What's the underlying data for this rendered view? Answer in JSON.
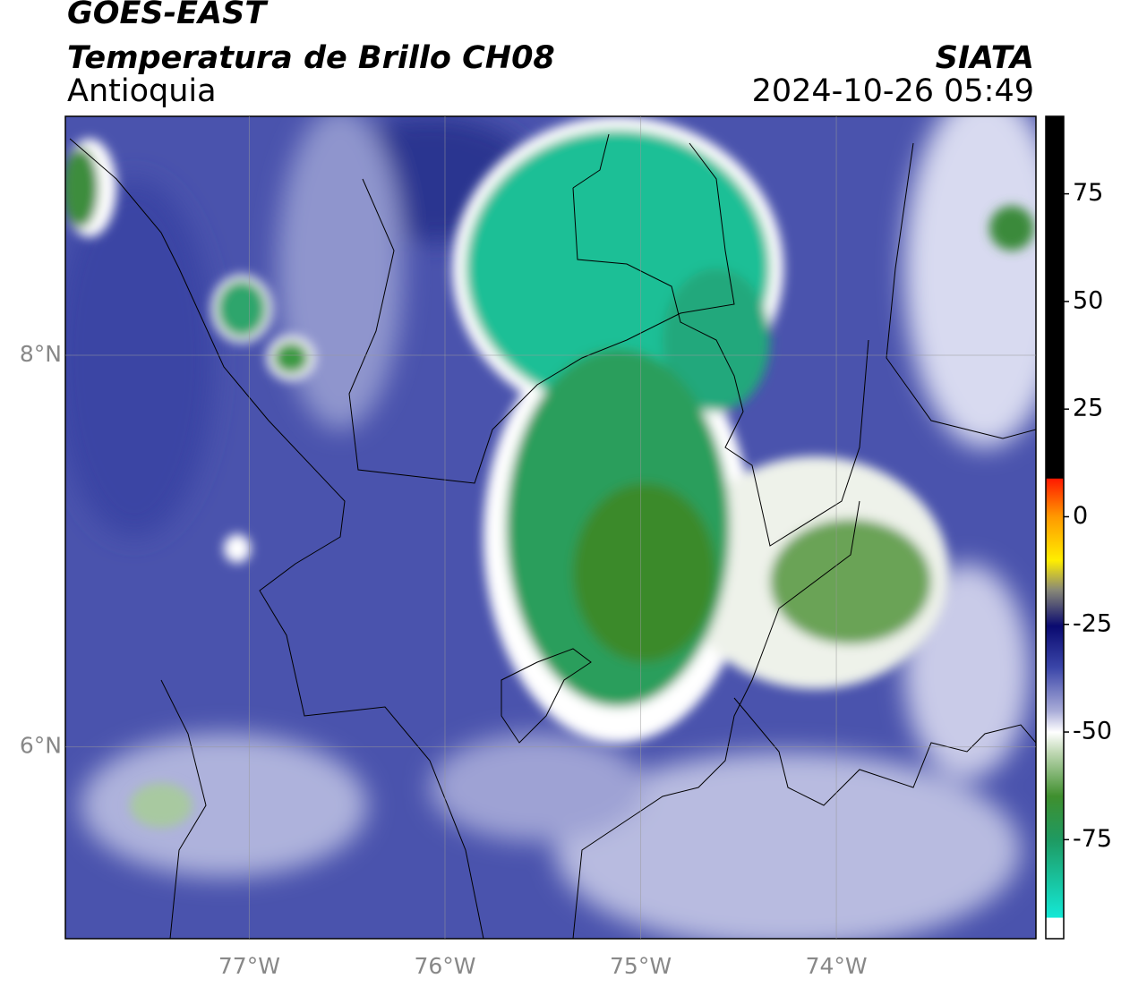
{
  "header": {
    "title": "GOES-EAST",
    "subtitle": "Temperatura de Brillo CH08",
    "region": "Antioquia",
    "source": "SIATA",
    "timestamp": "2024-10-26 05:49"
  },
  "map": {
    "xlim": [
      -77.94,
      -72.98
    ],
    "ylim": [
      5.02,
      9.22
    ],
    "xticks": [
      {
        "value": -77,
        "label": "77°W"
      },
      {
        "value": -76,
        "label": "76°W"
      },
      {
        "value": -75,
        "label": "75°W"
      },
      {
        "value": -74,
        "label": "74°W"
      }
    ],
    "yticks": [
      {
        "value": 8,
        "label": "8°N"
      },
      {
        "value": 6,
        "label": "6°N"
      }
    ],
    "grid": true
  },
  "colorbar": {
    "lim": [
      -98,
      93
    ],
    "ticks": [
      75,
      50,
      25,
      0,
      -25,
      -50,
      -75
    ]
  }
}
